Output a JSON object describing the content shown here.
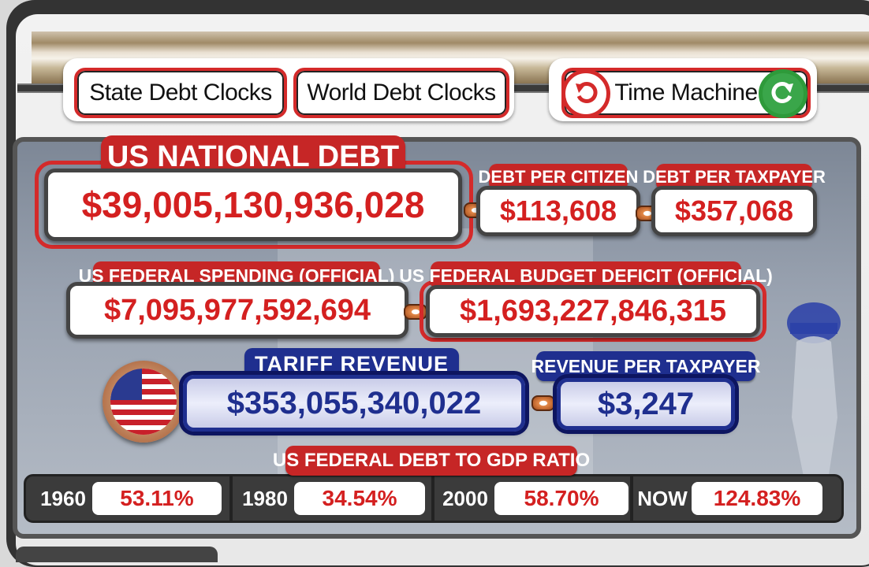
{
  "nav": {
    "state_debt_clocks": "State Debt Clocks",
    "world_debt_clocks": "World Debt Clocks",
    "time_machine": "Time Machine"
  },
  "national_debt": {
    "label": "US NATIONAL DEBT",
    "value": "$39,005,130,936,028"
  },
  "debt_per_citizen": {
    "label": "DEBT PER CITIZEN",
    "value": "$113,608"
  },
  "debt_per_taxpayer": {
    "label": "DEBT PER TAXPAYER",
    "value": "$357,068"
  },
  "federal_spending": {
    "label": "US FEDERAL SPENDING (OFFICIAL)",
    "value": "$7,095,977,592,694"
  },
  "budget_deficit": {
    "label": "US FEDERAL BUDGET DEFICIT (OFFICIAL)",
    "value": "$1,693,227,846,315"
  },
  "tariff_revenue": {
    "label": "TARIFF  REVENUE",
    "value": "$353,055,340,022"
  },
  "revenue_per_taxpayer": {
    "label": "REVENUE PER TAXPAYER",
    "value": "$3,247"
  },
  "gdp_ratio": {
    "label": "US FEDERAL DEBT TO GDP RATIO",
    "items": [
      {
        "year": "1960",
        "value": "53.11%"
      },
      {
        "year": "1980",
        "value": "34.54%"
      },
      {
        "year": "2000",
        "value": "58.70%"
      },
      {
        "year": "NOW",
        "value": "124.83%"
      }
    ]
  },
  "colors": {
    "red": "#c62626",
    "value_red": "#d42020",
    "navy": "#1f2f8f"
  },
  "icons": {
    "back": "undo-arrow-icon",
    "forward": "redo-arrow-icon",
    "flag": "us-flag-icon",
    "statue": "atlas-capitol-statue-icon"
  }
}
